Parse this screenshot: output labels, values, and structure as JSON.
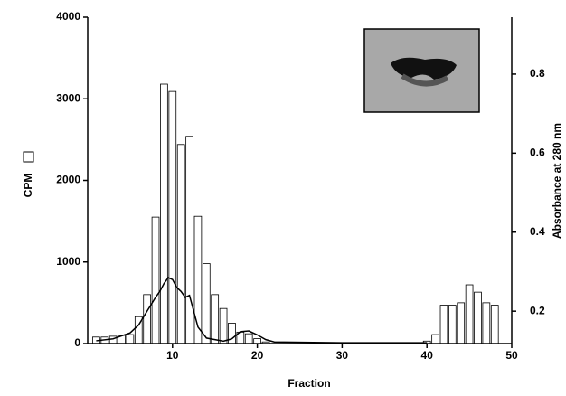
{
  "chart_data": {
    "type": "bar",
    "x_label": "Fraction",
    "y_label": "CPM",
    "y2_label": "Absorbance at 280 nm",
    "xlim": [
      0,
      50
    ],
    "xticks": [
      10,
      20,
      30,
      40,
      50
    ],
    "ylim": [
      0,
      4000
    ],
    "yticks": [
      0,
      1000,
      2000,
      3000,
      4000
    ],
    "y2lim": [
      0.118,
      0.944
    ],
    "y2ticks": [
      0.2,
      0.4,
      0.6,
      0.8
    ],
    "bar_color": "#ffffff",
    "line_color": "#000000",
    "bars": {
      "x": [
        1,
        2,
        3,
        4,
        5,
        6,
        7,
        8,
        9,
        10,
        11,
        12,
        13,
        14,
        15,
        16,
        17,
        18,
        19,
        20,
        21,
        40,
        41,
        42,
        43,
        44,
        45,
        46,
        47,
        48
      ],
      "values": [
        80,
        80,
        90,
        100,
        110,
        330,
        600,
        1550,
        3180,
        3090,
        2440,
        2540,
        1560,
        980,
        600,
        430,
        250,
        140,
        120,
        60,
        20,
        30,
        110,
        470,
        470,
        500,
        720,
        630,
        500,
        470
      ]
    },
    "line": {
      "axis": "y2",
      "x": [
        1,
        3,
        5,
        6,
        7,
        8,
        8.5,
        9,
        9.5,
        10,
        10.5,
        11,
        11.5,
        12,
        12.5,
        13,
        14,
        16,
        17,
        18,
        19,
        20,
        21,
        22,
        30,
        40
      ],
      "values": [
        0.125,
        0.13,
        0.145,
        0.165,
        0.2,
        0.235,
        0.25,
        0.27,
        0.285,
        0.28,
        0.26,
        0.25,
        0.235,
        0.24,
        0.2,
        0.16,
        0.132,
        0.124,
        0.13,
        0.148,
        0.15,
        0.14,
        0.128,
        0.122,
        0.12,
        0.12
      ]
    }
  }
}
